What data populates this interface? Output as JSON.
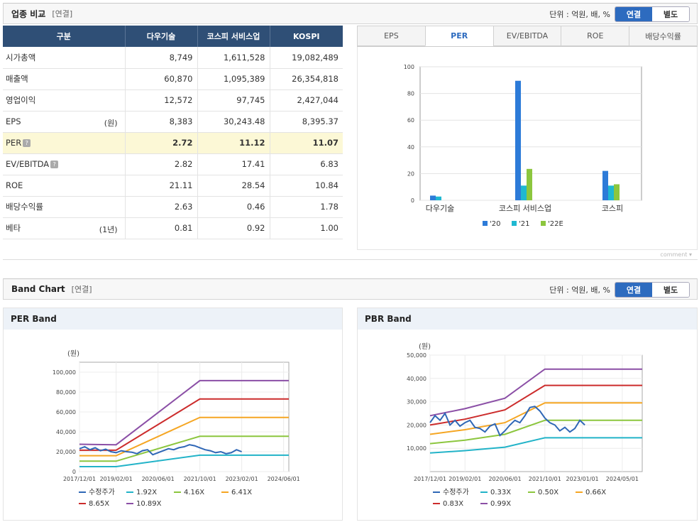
{
  "compare": {
    "title": "업종 비교",
    "sub": "[연결]",
    "unit": "단위 : 억원, 배, %",
    "toggle_on": "연결",
    "toggle_off": "별도",
    "headers": [
      "구분",
      "다우기술",
      "코스피 서비스업",
      "KOSPI"
    ],
    "rows": [
      {
        "label": "시가총액",
        "unit": "",
        "help": false,
        "values": [
          "8,749",
          "1,611,528",
          "19,082,489"
        ]
      },
      {
        "label": "매출액",
        "unit": "",
        "help": false,
        "values": [
          "60,870",
          "1,095,389",
          "26,354,818"
        ]
      },
      {
        "label": "영업이익",
        "unit": "",
        "help": false,
        "values": [
          "12,572",
          "97,745",
          "2,427,044"
        ]
      },
      {
        "label": "EPS",
        "unit": "(원)",
        "help": false,
        "values": [
          "8,383",
          "30,243.48",
          "8,395.37"
        ]
      },
      {
        "label": "PER",
        "unit": "",
        "help": true,
        "values": [
          "2.72",
          "11.12",
          "11.07"
        ]
      },
      {
        "label": "EV/EBITDA",
        "unit": "",
        "help": true,
        "values": [
          "2.82",
          "17.41",
          "6.83"
        ]
      },
      {
        "label": "ROE",
        "unit": "",
        "help": false,
        "values": [
          "21.11",
          "28.54",
          "10.84"
        ]
      },
      {
        "label": "배당수익률",
        "unit": "",
        "help": false,
        "values": [
          "2.63",
          "0.46",
          "1.78"
        ]
      },
      {
        "label": "베타",
        "unit": "(1년)",
        "help": false,
        "values": [
          "0.81",
          "0.92",
          "1.00"
        ]
      }
    ],
    "tabs": [
      "EPS",
      "PER",
      "EV/EBITDA",
      "ROE",
      "배당수익률"
    ],
    "active_tab": "PER",
    "comment": "comment"
  },
  "band": {
    "title": "Band Chart",
    "sub": "[연결]",
    "unit": "단위 : 억원, 배, %",
    "toggle_on": "연결",
    "toggle_off": "별도",
    "per_title": "PER Band",
    "pbr_title": "PBR Band"
  },
  "chart_data": [
    {
      "type": "bar",
      "categories": [
        "다우기술",
        "코스피 서비스업",
        "코스피"
      ],
      "series": [
        {
          "name": "'20",
          "color": "#2d7bd8",
          "values": [
            3.5,
            89.5,
            22
          ]
        },
        {
          "name": "'21",
          "color": "#1fb8d1",
          "values": [
            2.8,
            11,
            11
          ]
        },
        {
          "name": "'22E",
          "color": "#8cc63e",
          "values": [
            null,
            23.5,
            12
          ]
        }
      ],
      "ylim": [
        0,
        100
      ],
      "yticks": [
        0,
        20,
        40,
        60,
        80,
        100
      ],
      "legend": "bottom"
    },
    {
      "type": "line",
      "unit_label": "(원)",
      "ylim": [
        0,
        110000
      ],
      "yticks": [
        0,
        20000,
        40000,
        60000,
        80000,
        100000
      ],
      "ytick_labels": [
        "0",
        "20,000",
        "40,000",
        "60,000",
        "80,000",
        "100,000"
      ],
      "xlim": [
        "2017-12",
        "2024-08"
      ],
      "xticks": [
        "2017/12/01",
        "2019/02/01",
        "2020/06/01",
        "2021/10/01",
        "2023/02/01",
        "2024/06/01"
      ],
      "series": [
        {
          "name": "수정주가",
          "color": "#2f67b6",
          "x": [
            "2017-12",
            "2018-02",
            "2018-04",
            "2018-06",
            "2018-08",
            "2018-10",
            "2018-12",
            "2019-02",
            "2019-04",
            "2019-06",
            "2019-08",
            "2019-10",
            "2019-12",
            "2020-02",
            "2020-04",
            "2020-06",
            "2020-08",
            "2020-10",
            "2020-12",
            "2021-02",
            "2021-04",
            "2021-06",
            "2021-08",
            "2021-10",
            "2021-12",
            "2022-02",
            "2022-04",
            "2022-06",
            "2022-08",
            "2022-10",
            "2022-12",
            "2023-02"
          ],
          "values": [
            23000,
            25000,
            22000,
            24000,
            21000,
            22500,
            20000,
            19000,
            21000,
            20000,
            19500,
            18000,
            21000,
            22000,
            17000,
            19000,
            21000,
            23000,
            22000,
            24000,
            25000,
            27000,
            26000,
            24000,
            22000,
            21000,
            19000,
            20000,
            18000,
            19000,
            22000,
            20000
          ]
        },
        {
          "name": "1.92X",
          "color": "#22b3c8",
          "x": [
            "2017-12",
            "2019-02",
            "2021-10",
            "2024-08"
          ],
          "values": [
            5000,
            5000,
            16500,
            16500
          ]
        },
        {
          "name": "4.16X",
          "color": "#8cc63e",
          "x": [
            "2017-12",
            "2019-02",
            "2021-10",
            "2024-08"
          ],
          "values": [
            10500,
            10500,
            35500,
            35500
          ]
        },
        {
          "name": "6.41X",
          "color": "#f5a623",
          "x": [
            "2017-12",
            "2019-02",
            "2021-10",
            "2024-08"
          ],
          "values": [
            16000,
            16000,
            54500,
            54500
          ]
        },
        {
          "name": "8.65X",
          "color": "#cc2c2c",
          "x": [
            "2017-12",
            "2019-02",
            "2021-10",
            "2024-08"
          ],
          "values": [
            21500,
            21500,
            73000,
            73000
          ]
        },
        {
          "name": "10.89X",
          "color": "#8b4fa6",
          "x": [
            "2017-12",
            "2019-02",
            "2021-10",
            "2024-08"
          ],
          "values": [
            27500,
            27000,
            91500,
            91500
          ]
        }
      ],
      "legend": "bottom-left"
    },
    {
      "type": "line",
      "unit_label": "(원)",
      "ylim": [
        0,
        50000
      ],
      "yticks": [
        10000,
        20000,
        30000,
        40000,
        50000
      ],
      "ytick_labels": [
        "10,000",
        "20,000",
        "30,000",
        "40,000",
        "50,000"
      ],
      "xlim": [
        "2017-12",
        "2025-01"
      ],
      "xticks": [
        "2017/12/01",
        "2019/02/01",
        "2020/06/01",
        "2021/10/01",
        "2023/01/01",
        "2024/05/01"
      ],
      "series": [
        {
          "name": "수정주가",
          "color": "#2f67b6",
          "x": [
            "2017-12",
            "2018-02",
            "2018-04",
            "2018-06",
            "2018-08",
            "2018-10",
            "2018-12",
            "2019-02",
            "2019-04",
            "2019-06",
            "2019-08",
            "2019-10",
            "2019-12",
            "2020-02",
            "2020-04",
            "2020-06",
            "2020-08",
            "2020-10",
            "2020-12",
            "2021-02",
            "2021-04",
            "2021-06",
            "2021-08",
            "2021-10",
            "2021-12",
            "2022-02",
            "2022-04",
            "2022-06",
            "2022-08",
            "2022-10",
            "2022-12",
            "2023-02"
          ],
          "values": [
            21000,
            24000,
            22000,
            25000,
            20000,
            22000,
            19500,
            21000,
            22000,
            19000,
            18500,
            17000,
            19500,
            20500,
            15500,
            17500,
            20000,
            22000,
            21000,
            24000,
            27500,
            28000,
            26000,
            23000,
            21000,
            20000,
            17500,
            19000,
            17000,
            18500,
            22000,
            20000
          ]
        },
        {
          "name": "0.33X",
          "color": "#22b3c8",
          "x": [
            "2017-12",
            "2019-02",
            "2020-06",
            "2021-10",
            "2025-01"
          ],
          "values": [
            8000,
            9000,
            10500,
            14500,
            14500
          ]
        },
        {
          "name": "0.50X",
          "color": "#8cc63e",
          "x": [
            "2017-12",
            "2019-02",
            "2020-06",
            "2021-10",
            "2025-01"
          ],
          "values": [
            12000,
            13500,
            16000,
            22000,
            22000
          ]
        },
        {
          "name": "0.66X",
          "color": "#f5a623",
          "x": [
            "2017-12",
            "2019-02",
            "2020-06",
            "2021-10",
            "2025-01"
          ],
          "values": [
            16000,
            18000,
            21000,
            29500,
            29500
          ]
        },
        {
          "name": "0.83X",
          "color": "#cc2c2c",
          "x": [
            "2017-12",
            "2019-02",
            "2020-06",
            "2021-10",
            "2025-01"
          ],
          "values": [
            20000,
            22500,
            26500,
            37000,
            37000
          ]
        },
        {
          "name": "0.99X",
          "color": "#8b4fa6",
          "x": [
            "2017-12",
            "2019-02",
            "2020-06",
            "2021-10",
            "2025-01"
          ],
          "values": [
            24000,
            27000,
            31500,
            44000,
            44000
          ]
        }
      ],
      "legend": "bottom-left"
    }
  ]
}
